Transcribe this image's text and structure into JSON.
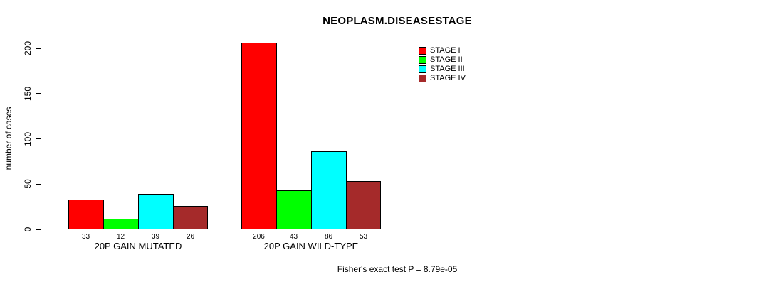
{
  "chart_data": {
    "type": "bar",
    "title": "NEOPLASM.DISEASESTAGE",
    "ylabel": "number of cases",
    "xlabel": "",
    "ylim": [
      0,
      200
    ],
    "yticks": [
      0,
      50,
      100,
      150,
      200
    ],
    "grid": false,
    "legend_position": "top-right",
    "show_bar_value_labels": true,
    "categories": [
      "20P GAIN MUTATED",
      "20P GAIN WILD-TYPE"
    ],
    "series": [
      {
        "name": "STAGE I",
        "color": "#ff0000",
        "values": [
          33,
          206
        ]
      },
      {
        "name": "STAGE II",
        "color": "#00ff00",
        "values": [
          12,
          43
        ]
      },
      {
        "name": "STAGE III",
        "color": "#00ffff",
        "values": [
          39,
          86
        ]
      },
      {
        "name": "STAGE IV",
        "color": "#a52a2a",
        "values": [
          26,
          53
        ]
      }
    ],
    "annotation": "Fisher's exact test P = 8.79e-05"
  }
}
